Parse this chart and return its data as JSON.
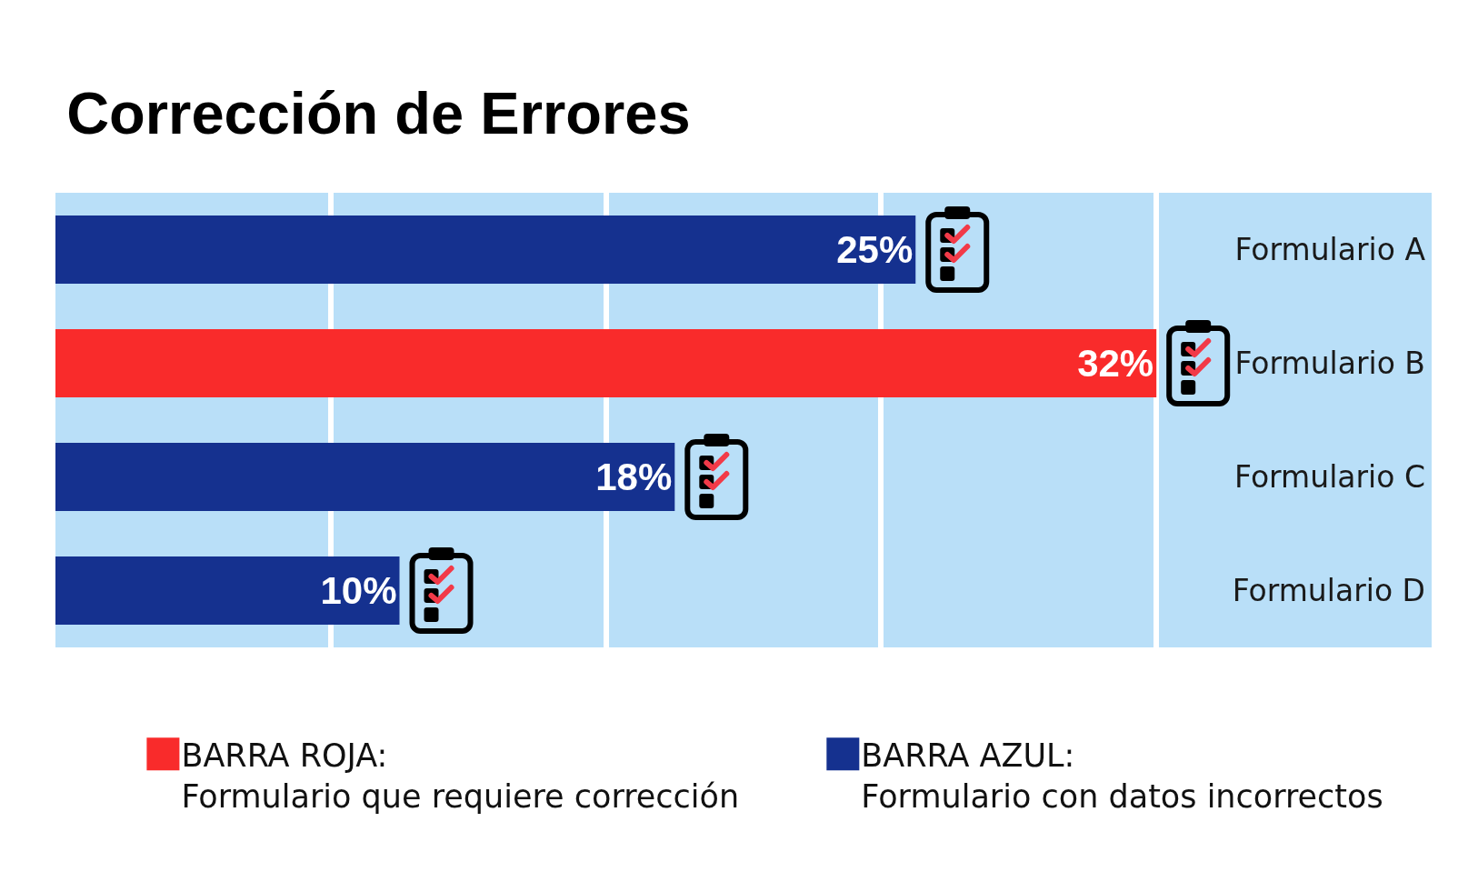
{
  "chart_data": {
    "type": "bar",
    "orientation": "horizontal",
    "title": "Corrección de Errores",
    "categories": [
      "Formulario A",
      "Formulario B",
      "Formulario C",
      "Formulario D"
    ],
    "series": [
      {
        "name": "BARRA ROJA:\nFormulario que requiere corrección",
        "color": "#f92b2b",
        "values": [
          null,
          32,
          null,
          null
        ],
        "value_labels": [
          null,
          "32%",
          null,
          null
        ]
      },
      {
        "name": "BARRA AZUL:\nFormulario con datos incorrectos",
        "color": "#15318f",
        "values": [
          25,
          null,
          18,
          10
        ],
        "value_labels": [
          "25%",
          null,
          "18%",
          "10%"
        ]
      }
    ],
    "xlim": [
      0,
      40
    ],
    "xticks": [
      {
        "value": 8,
        "label": null
      },
      {
        "value": 16,
        "label": null
      },
      {
        "value": 24,
        "label": null
      },
      {
        "value": 32,
        "label": null
      }
    ],
    "grid": "x",
    "legend": "bottom"
  }
}
